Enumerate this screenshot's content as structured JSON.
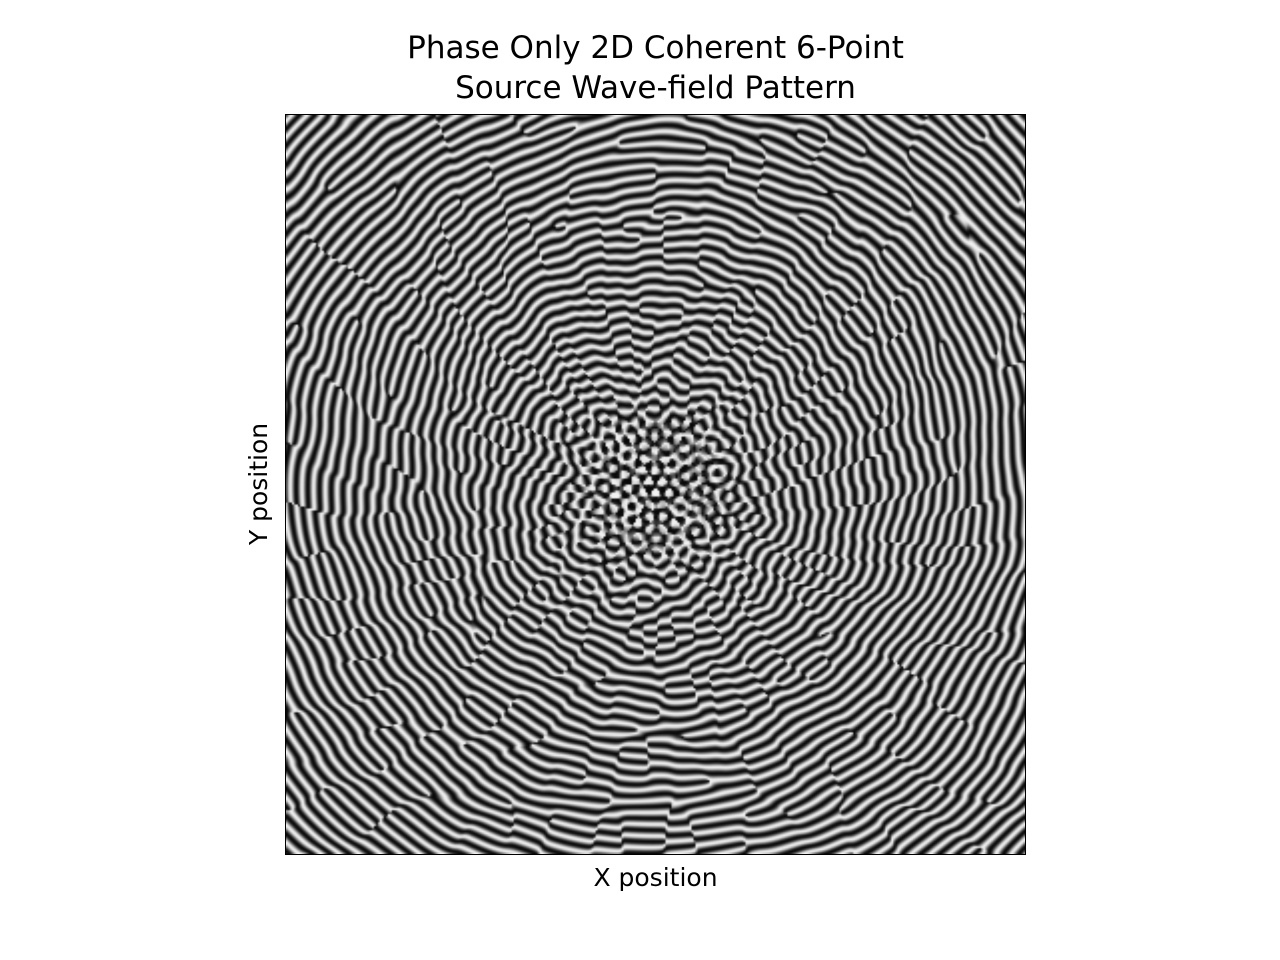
{
  "chart_data": {
    "type": "heatmap",
    "title_line1": "Phase Only 2D Coherent 6-Point",
    "title_line2": "Source Wave-field Pattern",
    "xlabel": "X position",
    "ylabel": "Y position",
    "colormap": "gray",
    "grid": false,
    "ticks_visible": false,
    "source_count": 6
  }
}
